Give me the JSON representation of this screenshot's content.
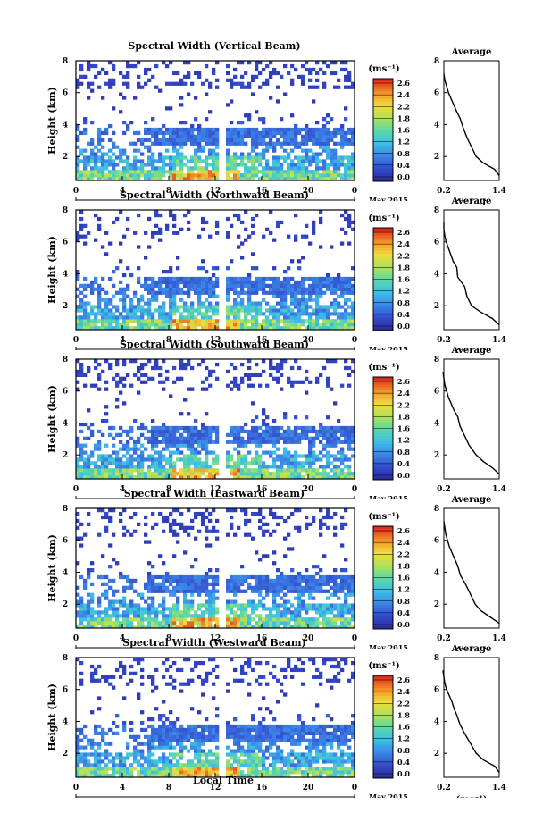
{
  "common": {
    "ylabel": "Height (km)",
    "unit_label": "(ms⁻¹)",
    "colorbar_ticks": [
      "2.6",
      "2.4",
      "2.2",
      "1.8",
      "1.6",
      "1.2",
      "0.8",
      "0.4",
      "0.0"
    ],
    "day_label": "22",
    "month_label": "May 2015",
    "xlabel": "Local Time",
    "avg_title": "Average",
    "avg_unit": "(ms⁻¹)",
    "y_ticks": [
      "8",
      "6",
      "4",
      "2"
    ],
    "x_ticks": [
      "0",
      "4",
      "8",
      "12",
      "16",
      "20",
      "0"
    ],
    "avg_x_ticks": [
      "0.2",
      "1.4"
    ]
  },
  "chart_data": [
    {
      "type": "heatmap",
      "title": "Spectral Width (Vertical Beam)",
      "xlabel": "Local Time",
      "ylabel": "Height (km)",
      "xlim": [
        0,
        24
      ],
      "ylim": [
        0.5,
        8
      ],
      "colorbar_range": [
        0.0,
        2.6
      ],
      "avg_profile": {
        "x": [
          1.4,
          1.3,
          1.05,
          0.9,
          0.8,
          0.7,
          0.62,
          0.55,
          0.48,
          0.42,
          0.36,
          0.3,
          0.26,
          0.22,
          0.2
        ],
        "heights": [
          0.8,
          1.2,
          1.6,
          2.0,
          2.6,
          3.2,
          3.8,
          4.4,
          4.8,
          5.2,
          5.6,
          6.0,
          6.4,
          6.8,
          7.2
        ]
      }
    },
    {
      "type": "heatmap",
      "title": "Spectral Width (Northward Beam)",
      "xlabel": "Local Time",
      "ylabel": "Height (km)",
      "xlim": [
        0,
        24
      ],
      "ylim": [
        0.5,
        8
      ],
      "colorbar_range": [
        0.0,
        2.6
      ],
      "avg_profile": {
        "x": [
          1.4,
          1.25,
          1.0,
          0.8,
          0.7,
          0.65,
          0.5,
          0.48,
          0.4,
          0.35,
          0.3,
          0.25,
          0.22,
          0.2,
          0.2
        ],
        "heights": [
          0.8,
          1.2,
          1.6,
          2.0,
          2.6,
          3.2,
          3.8,
          4.4,
          4.8,
          5.2,
          5.6,
          6.0,
          6.4,
          6.8,
          7.2
        ]
      }
    },
    {
      "type": "heatmap",
      "title": "Spectral Width (Southward Beam)",
      "xlabel": "Local Time",
      "ylabel": "Height (km)",
      "xlim": [
        0,
        24
      ],
      "ylim": [
        0.5,
        8
      ],
      "colorbar_range": [
        0.0,
        2.6
      ],
      "avg_profile": {
        "x": [
          1.4,
          1.25,
          1.05,
          0.9,
          0.75,
          0.65,
          0.55,
          0.5,
          0.42,
          0.36,
          0.3,
          0.26,
          0.22,
          0.2,
          0.18
        ],
        "heights": [
          0.8,
          1.2,
          1.6,
          2.0,
          2.6,
          3.2,
          3.8,
          4.4,
          4.8,
          5.2,
          5.6,
          6.0,
          6.4,
          6.8,
          7.2
        ]
      }
    },
    {
      "type": "heatmap",
      "title": "Spectral Width (Eastward Beam)",
      "xlabel": "Local Time",
      "ylabel": "Height (km)",
      "xlim": [
        0,
        24
      ],
      "ylim": [
        0.5,
        8
      ],
      "colorbar_range": [
        0.0,
        2.6
      ],
      "avg_profile": {
        "x": [
          1.4,
          1.2,
          1.0,
          0.88,
          0.78,
          0.68,
          0.56,
          0.5,
          0.44,
          0.38,
          0.32,
          0.28,
          0.24,
          0.22,
          0.2
        ],
        "heights": [
          0.8,
          1.2,
          1.6,
          2.0,
          2.6,
          3.2,
          3.8,
          4.4,
          4.8,
          5.2,
          5.6,
          6.0,
          6.4,
          6.8,
          7.2
        ]
      }
    },
    {
      "type": "heatmap",
      "title": "Spectral Width (Westward Beam)",
      "xlabel": "Local Time",
      "ylabel": "Height (km)",
      "xlim": [
        0,
        24
      ],
      "ylim": [
        0.5,
        8
      ],
      "colorbar_range": [
        0.0,
        2.6
      ],
      "avg_profile": {
        "x": [
          1.4,
          1.3,
          1.05,
          0.9,
          0.78,
          0.66,
          0.55,
          0.48,
          0.42,
          0.38,
          0.32,
          0.26,
          0.22,
          0.2,
          0.18
        ],
        "heights": [
          0.8,
          1.2,
          1.6,
          2.0,
          2.6,
          3.2,
          3.8,
          4.4,
          4.8,
          5.2,
          5.6,
          6.0,
          6.4,
          6.8,
          7.2
        ]
      }
    }
  ]
}
